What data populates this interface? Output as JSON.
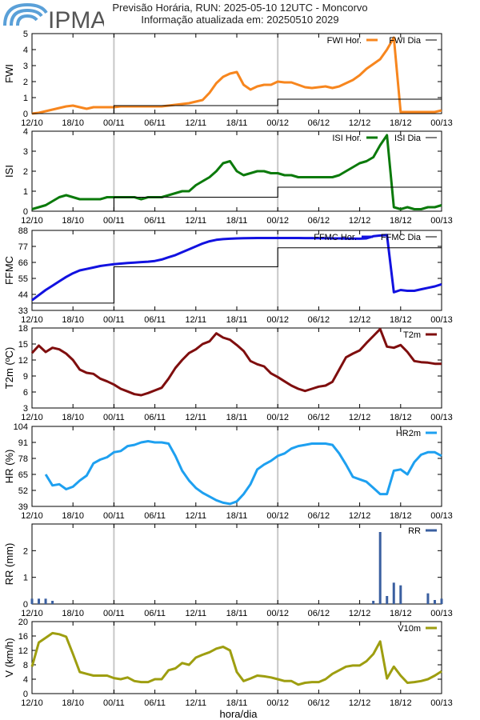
{
  "header": {
    "logo_text": "IPMA",
    "title_line1": "Previsão Horária, RUN: 2025-05-10 12UTC - Moncorvo",
    "title_line2": "Informação atualizada em: 20250510 2029"
  },
  "colors": {
    "fwi": "#f7861e",
    "isi": "#0b7a0b",
    "ffmc": "#1212e0",
    "t2m": "#7f0e0e",
    "hr2m": "#1ea0f0",
    "rr": "#3a5fa0",
    "v10m": "#9e9e10",
    "daily": "#000000",
    "grid": "#c8c8c8",
    "logo": "#5aa0d8"
  },
  "xaxis": {
    "label": "hora/dia",
    "tick_labels": [
      "12/10",
      "18/10",
      "00/11",
      "06/11",
      "12/11",
      "18/11",
      "00/12",
      "06/12",
      "12/12",
      "18/12",
      "00/13"
    ],
    "tick_hours": [
      0,
      6,
      12,
      18,
      24,
      30,
      36,
      42,
      48,
      54,
      60
    ],
    "vertical_lines_hours": [
      12,
      36
    ]
  },
  "chart_data": [
    {
      "type": "line",
      "name": "fwi",
      "ylabel": "FWI",
      "ylim": [
        0,
        5
      ],
      "yticks": [
        0,
        1,
        2,
        3,
        4,
        5
      ],
      "legend": [
        "FWI Hor.",
        "FWI Dia"
      ],
      "series": [
        {
          "name": "FWI Hor.",
          "kind": "line",
          "x": [
            0,
            1,
            2,
            3,
            4,
            5,
            6,
            7,
            8,
            9,
            10,
            11,
            12,
            13,
            14,
            15,
            16,
            17,
            18,
            19,
            20,
            21,
            22,
            23,
            24,
            25,
            26,
            27,
            28,
            29,
            30,
            31,
            32,
            33,
            34,
            35,
            36,
            37,
            38,
            39,
            40,
            41,
            42,
            43,
            44,
            45,
            46,
            47,
            48,
            49,
            50,
            51,
            52,
            53,
            54,
            55,
            56,
            57,
            58,
            59,
            60
          ],
          "y": [
            0.0,
            0.05,
            0.15,
            0.25,
            0.35,
            0.45,
            0.5,
            0.4,
            0.3,
            0.4,
            0.4,
            0.4,
            0.4,
            0.45,
            0.45,
            0.45,
            0.45,
            0.45,
            0.45,
            0.45,
            0.5,
            0.55,
            0.6,
            0.65,
            0.75,
            0.85,
            1.3,
            1.9,
            2.3,
            2.5,
            2.6,
            1.8,
            1.5,
            1.7,
            1.8,
            1.8,
            2.0,
            1.95,
            1.95,
            1.8,
            1.65,
            1.6,
            1.65,
            1.7,
            1.6,
            1.7,
            1.9,
            2.1,
            2.4,
            2.8,
            3.1,
            3.4,
            4.0,
            4.75,
            0.1,
            0.1,
            0.1,
            0.1,
            0.1,
            0.1,
            0.2
          ]
        },
        {
          "name": "FWI Dia",
          "kind": "step",
          "segments": [
            [
              0,
              12,
              0.0
            ],
            [
              12,
              36,
              0.5
            ],
            [
              36,
              60,
              0.9
            ]
          ]
        }
      ]
    },
    {
      "type": "line",
      "name": "isi",
      "ylabel": "ISI",
      "ylim": [
        0,
        4
      ],
      "yticks": [
        0,
        1,
        2,
        3,
        4
      ],
      "legend": [
        "ISI Hor.",
        "ISI Dia"
      ],
      "series": [
        {
          "name": "ISI Hor.",
          "kind": "line",
          "x": [
            0,
            1,
            2,
            3,
            4,
            5,
            6,
            7,
            8,
            9,
            10,
            11,
            12,
            13,
            14,
            15,
            16,
            17,
            18,
            19,
            20,
            21,
            22,
            23,
            24,
            25,
            26,
            27,
            28,
            29,
            30,
            31,
            32,
            33,
            34,
            35,
            36,
            37,
            38,
            39,
            40,
            41,
            42,
            43,
            44,
            45,
            46,
            47,
            48,
            49,
            50,
            51,
            52,
            53,
            54,
            55,
            56,
            57,
            58,
            59,
            60
          ],
          "y": [
            0.1,
            0.2,
            0.3,
            0.5,
            0.7,
            0.8,
            0.7,
            0.6,
            0.6,
            0.6,
            0.6,
            0.7,
            0.7,
            0.7,
            0.7,
            0.7,
            0.6,
            0.7,
            0.7,
            0.7,
            0.8,
            0.9,
            1.0,
            1.0,
            1.3,
            1.5,
            1.7,
            2.0,
            2.4,
            2.5,
            2.0,
            1.8,
            1.9,
            2.0,
            2.0,
            1.9,
            1.9,
            1.8,
            1.8,
            1.7,
            1.7,
            1.7,
            1.7,
            1.7,
            1.7,
            1.8,
            2.0,
            2.2,
            2.4,
            2.5,
            2.7,
            3.3,
            3.8,
            0.2,
            0.1,
            0.2,
            0.1,
            0.1,
            0.2,
            0.2,
            0.3
          ]
        },
        {
          "name": "ISI Dia",
          "kind": "step",
          "segments": [
            [
              0,
              12,
              0.0
            ],
            [
              12,
              36,
              0.7
            ],
            [
              36,
              60,
              1.2
            ]
          ]
        }
      ]
    },
    {
      "type": "line",
      "name": "ffmc",
      "ylabel": "FFMC",
      "ylim": [
        33,
        88
      ],
      "yticks": [
        33,
        44,
        55,
        66,
        77,
        88
      ],
      "legend": [
        "FFMC Hor.",
        "FFMC Dia"
      ],
      "series": [
        {
          "name": "FFMC Hor.",
          "kind": "line",
          "x": [
            0,
            1,
            2,
            3,
            4,
            5,
            6,
            7,
            8,
            9,
            10,
            11,
            12,
            13,
            14,
            15,
            16,
            17,
            18,
            19,
            20,
            21,
            22,
            23,
            24,
            25,
            26,
            27,
            28,
            29,
            30,
            31,
            32,
            33,
            34,
            35,
            36,
            37,
            38,
            39,
            40,
            41,
            42,
            43,
            44,
            45,
            46,
            47,
            48,
            49,
            50,
            51,
            52,
            53,
            54,
            55,
            56,
            57,
            58,
            59,
            60
          ],
          "y": [
            40,
            43.5,
            47,
            50,
            53,
            56,
            58.5,
            60.5,
            61.5,
            62.5,
            63.5,
            64.2,
            64.8,
            65.2,
            65.6,
            65.9,
            66.2,
            66.5,
            67,
            68,
            69.5,
            71,
            73,
            75,
            77,
            79,
            80.5,
            81.5,
            82,
            82.3,
            82.5,
            82.6,
            82.7,
            82.8,
            82.8,
            82.8,
            82.8,
            82.8,
            82.8,
            82.8,
            82.7,
            82.7,
            82.6,
            82.6,
            82.5,
            82.5,
            82.4,
            82.4,
            82.3,
            82.5,
            84,
            84.5,
            84.8,
            45.5,
            47,
            46.5,
            46.5,
            47.5,
            48.5,
            49.5,
            51
          ]
        },
        {
          "name": "FFMC Dia",
          "kind": "step",
          "segments": [
            [
              0,
              12,
              38
            ],
            [
              12,
              36,
              63
            ],
            [
              36,
              60,
              76
            ]
          ]
        }
      ]
    },
    {
      "type": "line",
      "name": "t2m",
      "ylabel": "T2m (ºC)",
      "ylim": [
        3,
        18
      ],
      "yticks": [
        3,
        6,
        9,
        12,
        15,
        18
      ],
      "legend": [
        "T2m"
      ],
      "series": [
        {
          "name": "T2m",
          "kind": "line",
          "x": [
            0,
            1,
            2,
            3,
            4,
            5,
            6,
            7,
            8,
            9,
            10,
            11,
            12,
            13,
            14,
            15,
            16,
            17,
            18,
            19,
            20,
            21,
            22,
            23,
            24,
            25,
            26,
            27,
            28,
            29,
            30,
            31,
            32,
            33,
            34,
            35,
            36,
            37,
            38,
            39,
            40,
            41,
            42,
            43,
            44,
            45,
            46,
            47,
            48,
            49,
            50,
            51,
            52,
            53,
            54,
            55,
            56,
            57,
            58,
            59,
            60
          ],
          "y": [
            13.3,
            14.7,
            13.5,
            14.3,
            14.0,
            13.2,
            12.0,
            10.2,
            9.6,
            9.4,
            8.5,
            8.0,
            7.4,
            6.6,
            6.1,
            5.6,
            5.4,
            5.8,
            6.3,
            6.8,
            8.5,
            10.5,
            12.0,
            13.3,
            14.0,
            15.0,
            15.5,
            17.0,
            16.2,
            15.8,
            14.8,
            13.7,
            11.8,
            11.2,
            10.8,
            9.5,
            8.8,
            8.0,
            7.2,
            6.6,
            6.2,
            6.6,
            7.0,
            7.2,
            7.9,
            10.2,
            12.5,
            13.2,
            13.8,
            15.2,
            16.5,
            17.8,
            14.5,
            14.3,
            14.8,
            13.5,
            11.8,
            11.6,
            11.5,
            11.3,
            11.3
          ]
        }
      ]
    },
    {
      "type": "line",
      "name": "hr2m",
      "ylabel": "HR (%)",
      "ylim": [
        39,
        104
      ],
      "yticks": [
        39,
        52,
        65,
        78,
        91,
        104
      ],
      "legend": [
        "HR2m"
      ],
      "series": [
        {
          "name": "HR2m",
          "kind": "line",
          "x": [
            2,
            3,
            4,
            5,
            6,
            7,
            8,
            9,
            10,
            11,
            12,
            13,
            14,
            15,
            16,
            17,
            18,
            19,
            20,
            21,
            22,
            23,
            24,
            25,
            26,
            27,
            28,
            29,
            30,
            31,
            32,
            33,
            34,
            35,
            36,
            37,
            38,
            39,
            40,
            41,
            42,
            43,
            44,
            45,
            46,
            47,
            48,
            49,
            50,
            51,
            52,
            53,
            54,
            55,
            56,
            57,
            58,
            59,
            60
          ],
          "y": [
            65,
            56,
            57,
            53,
            55,
            60,
            64,
            74,
            77,
            79,
            83,
            84,
            88,
            89,
            91,
            92,
            91,
            91,
            90,
            80,
            68,
            60,
            54,
            50,
            47,
            44,
            42,
            41,
            43,
            49,
            57,
            69,
            73,
            76,
            80,
            82,
            86,
            88,
            89,
            90,
            90,
            90,
            89,
            82,
            73,
            63,
            61,
            59,
            54,
            49,
            49,
            68,
            69,
            65,
            75,
            81,
            83,
            83,
            80
          ]
        }
      ]
    },
    {
      "type": "bar",
      "name": "rr",
      "ylabel": "RR (mm)",
      "ylim": [
        0,
        3
      ],
      "yticks": [
        0,
        1,
        2
      ],
      "legend": [
        "RR"
      ],
      "series": [
        {
          "name": "RR",
          "kind": "bar",
          "x": [
            0,
            1,
            2,
            3,
            50,
            51,
            52,
            53,
            54,
            58,
            59,
            60
          ],
          "y": [
            0.2,
            0.2,
            0.2,
            0.12,
            0.12,
            2.7,
            0.3,
            0.8,
            0.7,
            0.4,
            0.15,
            0.2
          ]
        }
      ]
    },
    {
      "type": "line",
      "name": "v10m",
      "ylabel": "V (km/h)",
      "ylim": [
        0,
        20
      ],
      "yticks": [
        0,
        4,
        8,
        12,
        16,
        20
      ],
      "legend": [
        "V10m"
      ],
      "series": [
        {
          "name": "V10m",
          "kind": "line",
          "x": [
            0,
            1,
            2,
            3,
            4,
            5,
            6,
            7,
            8,
            9,
            10,
            11,
            12,
            13,
            14,
            15,
            16,
            17,
            18,
            19,
            20,
            21,
            22,
            23,
            24,
            25,
            26,
            27,
            28,
            29,
            30,
            31,
            32,
            33,
            34,
            35,
            36,
            37,
            38,
            39,
            40,
            41,
            42,
            43,
            44,
            45,
            46,
            47,
            48,
            49,
            50,
            51,
            52,
            53,
            54,
            55,
            56,
            57,
            58,
            59,
            60
          ],
          "y": [
            7.5,
            14.2,
            15.5,
            16.8,
            16.5,
            15.8,
            11.0,
            6.0,
            5.5,
            5.0,
            5.0,
            5.0,
            4.3,
            4.0,
            4.5,
            3.5,
            3.2,
            3.2,
            4.0,
            4.0,
            6.5,
            7.0,
            8.5,
            8.0,
            10.0,
            10.8,
            11.5,
            12.5,
            13.0,
            12.0,
            6.0,
            3.5,
            4.2,
            5.0,
            4.8,
            4.5,
            4.0,
            3.5,
            3.5,
            2.5,
            3.0,
            3.2,
            3.2,
            4.0,
            5.5,
            6.5,
            7.5,
            7.8,
            7.8,
            9.0,
            11.0,
            14.5,
            4.2,
            7.5,
            5.0,
            3.0,
            3.2,
            3.5,
            4.0,
            5.0,
            6.2
          ]
        }
      ]
    }
  ]
}
